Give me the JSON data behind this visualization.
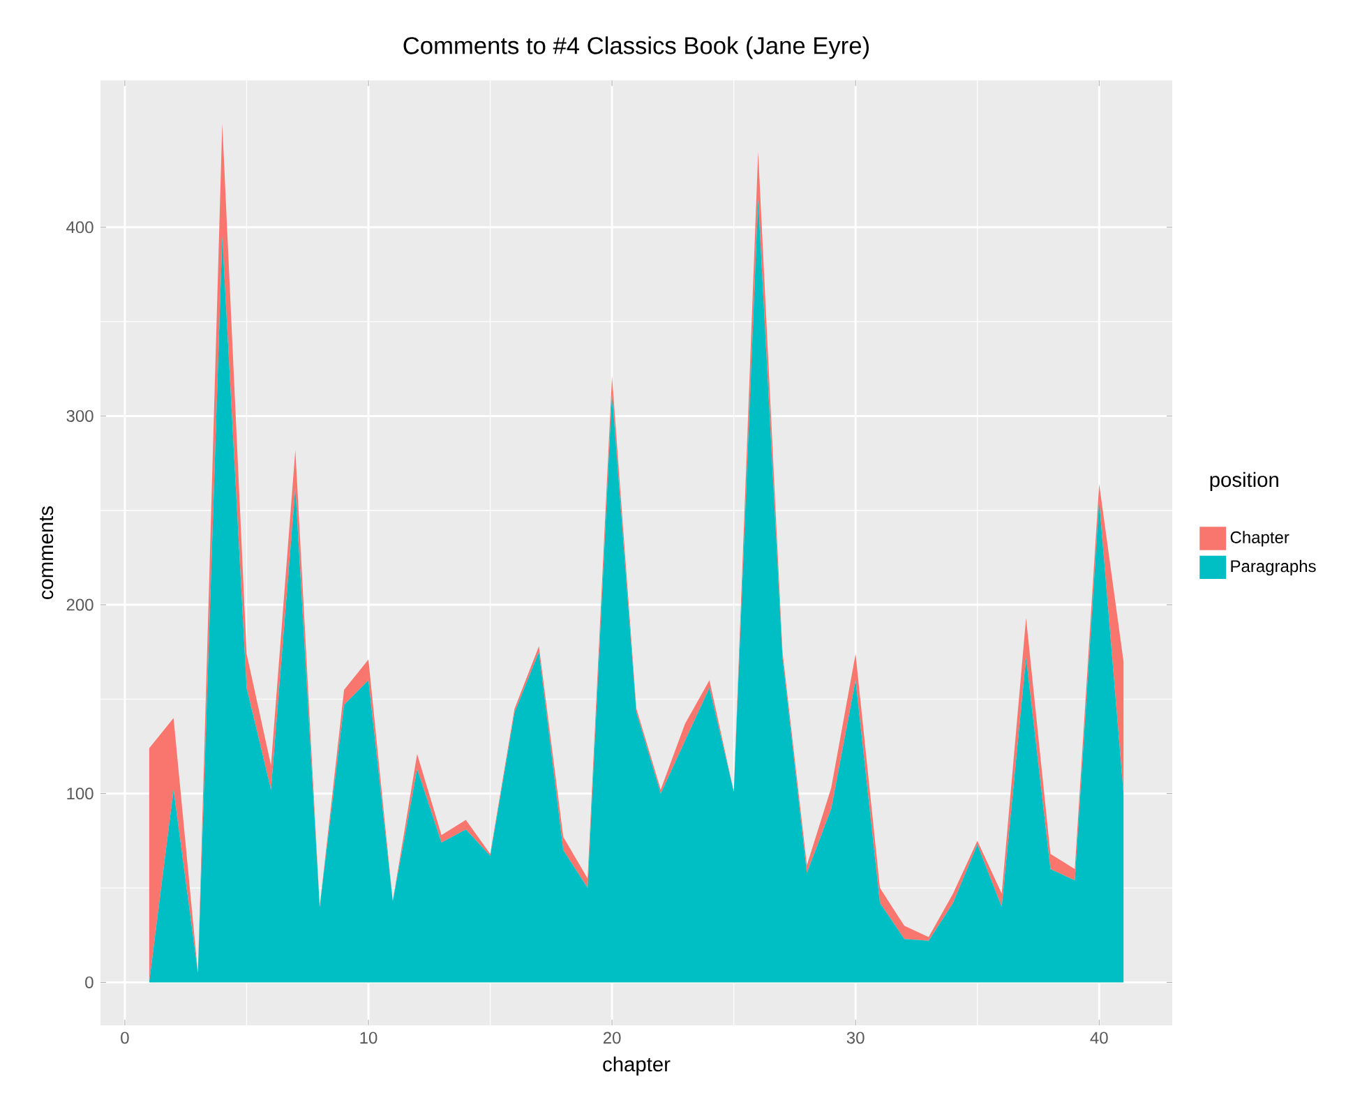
{
  "chart_data": {
    "type": "area",
    "title": "Comments to #4 Classics Book (Jane Eyre)",
    "xlabel": "chapter",
    "ylabel": "comments",
    "legend_title": "position",
    "x": [
      1,
      2,
      3,
      4,
      5,
      6,
      7,
      8,
      9,
      10,
      11,
      12,
      13,
      14,
      15,
      16,
      17,
      18,
      19,
      20,
      21,
      22,
      23,
      24,
      25,
      26,
      27,
      28,
      29,
      30,
      31,
      32,
      33,
      34,
      35,
      36,
      37,
      38,
      39,
      40,
      41
    ],
    "series": [
      {
        "name": "Paragraphs",
        "color": "#00bfc4",
        "values": [
          0,
          102,
          5,
          395,
          156,
          102,
          262,
          40,
          147,
          160,
          43,
          113,
          74,
          81,
          67,
          143,
          175,
          70,
          50,
          312,
          143,
          100,
          128,
          156,
          101,
          415,
          172,
          58,
          92,
          160,
          42,
          23,
          22,
          42,
          73,
          40,
          172,
          60,
          54,
          255,
          100
        ]
      },
      {
        "name": "Chapter",
        "color": "#f8766d",
        "values": [
          124,
          38,
          0,
          60,
          18,
          13,
          20,
          0,
          8,
          11,
          0,
          8,
          4,
          5,
          1,
          2,
          3,
          7,
          5,
          9,
          2,
          2,
          9,
          4,
          0,
          25,
          3,
          4,
          11,
          14,
          8,
          7,
          2,
          5,
          2,
          7,
          21,
          8,
          6,
          9,
          70
        ]
      }
    ],
    "stacked": true,
    "xlim": [
      -1,
      43
    ],
    "ylim": [
      -22.75,
      477.75
    ],
    "xticks": [
      0,
      10,
      20,
      30,
      40
    ],
    "yticks": [
      0,
      100,
      200,
      300,
      400
    ],
    "grid": true,
    "legend": "right"
  }
}
